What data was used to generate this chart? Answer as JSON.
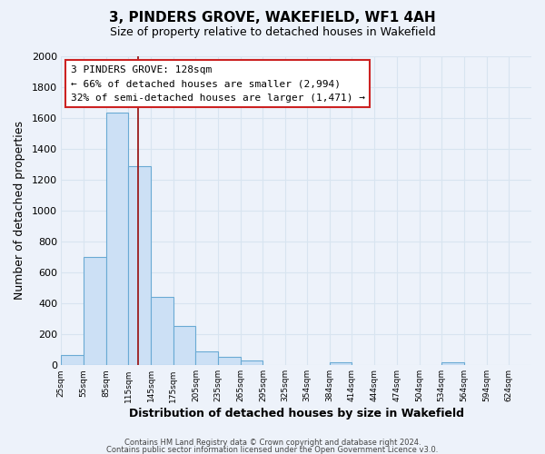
{
  "title": "3, PINDERS GROVE, WAKEFIELD, WF1 4AH",
  "subtitle": "Size of property relative to detached houses in Wakefield",
  "xlabel": "Distribution of detached houses by size in Wakefield",
  "ylabel": "Number of detached properties",
  "bar_color": "#cce0f5",
  "bar_edge_color": "#6aaad4",
  "background_color": "#edf2fa",
  "grid_color": "#d8e4f0",
  "bins_left": [
    25,
    55,
    85,
    115,
    145,
    175,
    205,
    235,
    265,
    295,
    325,
    354,
    384,
    414,
    444,
    474,
    504,
    534,
    564,
    594,
    624
  ],
  "heights": [
    65,
    700,
    1630,
    1285,
    440,
    255,
    90,
    55,
    30,
    0,
    0,
    0,
    20,
    0,
    0,
    0,
    0,
    20,
    0,
    0,
    0
  ],
  "bin_width": 30,
  "red_line_x": 128,
  "ylim_max": 2000,
  "yticks": [
    0,
    200,
    400,
    600,
    800,
    1000,
    1200,
    1400,
    1600,
    1800,
    2000
  ],
  "annotation_title": "3 PINDERS GROVE: 128sqm",
  "annotation_line1": "← 66% of detached houses are smaller (2,994)",
  "annotation_line2": "32% of semi-detached houses are larger (1,471) →",
  "footer_line1": "Contains HM Land Registry data © Crown copyright and database right 2024.",
  "footer_line2": "Contains public sector information licensed under the Open Government Licence v3.0."
}
